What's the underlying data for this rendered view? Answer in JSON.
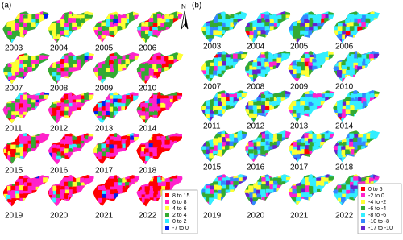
{
  "panel_a": {
    "label": "(a)",
    "years": [
      "2003",
      "2004",
      "2005",
      "2006",
      "2007",
      "2008",
      "2009",
      "2010",
      "2011",
      "2012",
      "2013",
      "2014",
      "2015",
      "2016",
      "2017",
      "2018",
      "2019",
      "2020",
      "2021",
      "2022"
    ],
    "legend": [
      {
        "label": "8 to 15",
        "color": "#ff0000"
      },
      {
        "label": "6 to 8",
        "color": "#ff22cc"
      },
      {
        "label": "4 to 6",
        "color": "#ffff33"
      },
      {
        "label": "2 to 4",
        "color": "#33aa33"
      },
      {
        "label": "0 to 2",
        "color": "#33eeff"
      },
      {
        "label": "-7 to 0",
        "color": "#0022ee"
      }
    ]
  },
  "north_arrow": "N",
  "panel_b": {
    "label": "(b)",
    "years": [
      "2003",
      "2004",
      "2005",
      "2006",
      "2007",
      "2008",
      "2009",
      "2010",
      "2011",
      "2012",
      "2013",
      "2014",
      "2015",
      "2016",
      "2017",
      "2018",
      "2019",
      "2020",
      "2021",
      "2022"
    ],
    "legend": [
      {
        "label": "0 to 5",
        "color": "#ff0000"
      },
      {
        "label": "-2 to 0",
        "color": "#ff22cc"
      },
      {
        "label": "-4 to -2",
        "color": "#ffff33"
      },
      {
        "label": "-6 to -4",
        "color": "#33aa33"
      },
      {
        "label": "-8 to -6",
        "color": "#33eeff"
      },
      {
        "label": "-10 to -8",
        "color": "#3388ff"
      },
      {
        "label": "-17 to -10",
        "color": "#6622cc"
      }
    ]
  }
}
